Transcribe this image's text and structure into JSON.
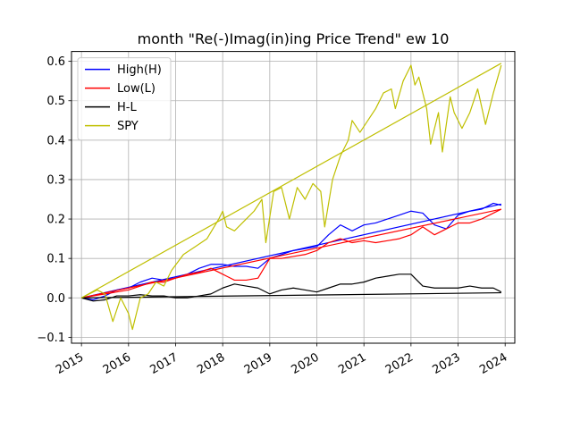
{
  "chart_data": {
    "type": "line",
    "title": "month \"Re(-)Imag(in)ing Price Trend\" ew 10",
    "xlabel": "",
    "ylabel": "",
    "x_ticks": [
      "2015",
      "2016",
      "2017",
      "2018",
      "2019",
      "2020",
      "2021",
      "2022",
      "2023",
      "2024"
    ],
    "y_ticks": [
      "−0.1",
      "0.0",
      "0.1",
      "0.2",
      "0.3",
      "0.4",
      "0.5",
      "0.6"
    ],
    "xlim": [
      "2014-10-15",
      "2024-03-15"
    ],
    "ylim": [
      -0.115,
      0.625
    ],
    "grid": true,
    "legend_position": "upper-left",
    "series": [
      {
        "name": "High(H)",
        "color": "#0000ff",
        "points": [
          [
            "2015-01",
            0.0
          ],
          [
            "2015-04",
            -0.005
          ],
          [
            "2015-07",
            0.005
          ],
          [
            "2015-10",
            0.02
          ],
          [
            "2016-01",
            0.025
          ],
          [
            "2016-04",
            0.04
          ],
          [
            "2016-07",
            0.05
          ],
          [
            "2016-10",
            0.045
          ],
          [
            "2017-01",
            0.05
          ],
          [
            "2017-04",
            0.06
          ],
          [
            "2017-07",
            0.075
          ],
          [
            "2017-10",
            0.085
          ],
          [
            "2018-01",
            0.085
          ],
          [
            "2018-04",
            0.08
          ],
          [
            "2018-07",
            0.08
          ],
          [
            "2018-10",
            0.075
          ],
          [
            "2019-01",
            0.1
          ],
          [
            "2019-04",
            0.11
          ],
          [
            "2019-07",
            0.12
          ],
          [
            "2019-10",
            0.125
          ],
          [
            "2020-01",
            0.13
          ],
          [
            "2020-04",
            0.16
          ],
          [
            "2020-07",
            0.185
          ],
          [
            "2020-10",
            0.17
          ],
          [
            "2021-01",
            0.185
          ],
          [
            "2021-04",
            0.19
          ],
          [
            "2021-07",
            0.2
          ],
          [
            "2021-10",
            0.21
          ],
          [
            "2022-01",
            0.22
          ],
          [
            "2022-04",
            0.215
          ],
          [
            "2022-07",
            0.185
          ],
          [
            "2022-10",
            0.175
          ],
          [
            "2023-01",
            0.21
          ],
          [
            "2023-04",
            0.22
          ],
          [
            "2023-07",
            0.225
          ],
          [
            "2023-10",
            0.24
          ],
          [
            "2023-12",
            0.235
          ]
        ],
        "trend": [
          [
            "2015-01",
            0.0
          ],
          [
            "2023-12",
            0.238
          ]
        ]
      },
      {
        "name": "Low(L)",
        "color": "#ff0000",
        "points": [
          [
            "2015-01",
            0.0
          ],
          [
            "2015-04",
            0.005
          ],
          [
            "2015-07",
            0.01
          ],
          [
            "2015-10",
            0.015
          ],
          [
            "2016-01",
            0.02
          ],
          [
            "2016-04",
            0.03
          ],
          [
            "2016-07",
            0.04
          ],
          [
            "2016-10",
            0.04
          ],
          [
            "2017-01",
            0.05
          ],
          [
            "2017-04",
            0.06
          ],
          [
            "2017-07",
            0.065
          ],
          [
            "2017-10",
            0.075
          ],
          [
            "2018-01",
            0.06
          ],
          [
            "2018-04",
            0.045
          ],
          [
            "2018-07",
            0.045
          ],
          [
            "2018-10",
            0.05
          ],
          [
            "2019-01",
            0.1
          ],
          [
            "2019-04",
            0.1
          ],
          [
            "2019-07",
            0.105
          ],
          [
            "2019-10",
            0.11
          ],
          [
            "2020-01",
            0.12
          ],
          [
            "2020-04",
            0.14
          ],
          [
            "2020-07",
            0.15
          ],
          [
            "2020-10",
            0.14
          ],
          [
            "2021-01",
            0.145
          ],
          [
            "2021-04",
            0.14
          ],
          [
            "2021-07",
            0.145
          ],
          [
            "2021-10",
            0.15
          ],
          [
            "2022-01",
            0.16
          ],
          [
            "2022-04",
            0.18
          ],
          [
            "2022-07",
            0.16
          ],
          [
            "2022-10",
            0.175
          ],
          [
            "2023-01",
            0.19
          ],
          [
            "2023-04",
            0.19
          ],
          [
            "2023-07",
            0.2
          ],
          [
            "2023-10",
            0.215
          ],
          [
            "2023-12",
            0.225
          ]
        ],
        "trend": [
          [
            "2015-01",
            0.0
          ],
          [
            "2023-12",
            0.225
          ]
        ]
      },
      {
        "name": "H-L",
        "color": "#000000",
        "points": [
          [
            "2015-01",
            0.0
          ],
          [
            "2015-04",
            -0.008
          ],
          [
            "2015-07",
            -0.005
          ],
          [
            "2015-10",
            0.005
          ],
          [
            "2016-01",
            0.005
          ],
          [
            "2016-04",
            0.008
          ],
          [
            "2016-07",
            0.005
          ],
          [
            "2016-10",
            0.005
          ],
          [
            "2017-01",
            0.0
          ],
          [
            "2017-04",
            0.0
          ],
          [
            "2017-07",
            0.005
          ],
          [
            "2017-10",
            0.01
          ],
          [
            "2018-01",
            0.025
          ],
          [
            "2018-04",
            0.035
          ],
          [
            "2018-07",
            0.03
          ],
          [
            "2018-10",
            0.025
          ],
          [
            "2019-01",
            0.01
          ],
          [
            "2019-04",
            0.02
          ],
          [
            "2019-07",
            0.025
          ],
          [
            "2019-10",
            0.02
          ],
          [
            "2020-01",
            0.015
          ],
          [
            "2020-04",
            0.025
          ],
          [
            "2020-07",
            0.035
          ],
          [
            "2020-10",
            0.035
          ],
          [
            "2021-01",
            0.04
          ],
          [
            "2021-04",
            0.05
          ],
          [
            "2021-07",
            0.055
          ],
          [
            "2021-10",
            0.06
          ],
          [
            "2022-01",
            0.06
          ],
          [
            "2022-04",
            0.03
          ],
          [
            "2022-07",
            0.025
          ],
          [
            "2022-10",
            0.025
          ],
          [
            "2023-01",
            0.025
          ],
          [
            "2023-04",
            0.03
          ],
          [
            "2023-07",
            0.025
          ],
          [
            "2023-10",
            0.025
          ],
          [
            "2023-12",
            0.015
          ]
        ],
        "trend": [
          [
            "2015-01",
            0.0
          ],
          [
            "2023-12",
            0.013
          ]
        ]
      },
      {
        "name": "SPY",
        "color": "#bfbf00",
        "points": [
          [
            "2015-01",
            0.0
          ],
          [
            "2015-03",
            0.01
          ],
          [
            "2015-05",
            0.02
          ],
          [
            "2015-07",
            0.01
          ],
          [
            "2015-09",
            -0.06
          ],
          [
            "2015-11",
            0.0
          ],
          [
            "2016-01",
            -0.04
          ],
          [
            "2016-02",
            -0.08
          ],
          [
            "2016-04",
            0.0
          ],
          [
            "2016-06",
            0.01
          ],
          [
            "2016-08",
            0.04
          ],
          [
            "2016-10",
            0.03
          ],
          [
            "2016-12",
            0.07
          ],
          [
            "2017-03",
            0.11
          ],
          [
            "2017-06",
            0.13
          ],
          [
            "2017-09",
            0.15
          ],
          [
            "2017-12",
            0.2
          ],
          [
            "2018-01",
            0.22
          ],
          [
            "2018-02",
            0.18
          ],
          [
            "2018-04",
            0.17
          ],
          [
            "2018-07",
            0.2
          ],
          [
            "2018-09",
            0.22
          ],
          [
            "2018-11",
            0.25
          ],
          [
            "2018-12",
            0.14
          ],
          [
            "2019-02",
            0.27
          ],
          [
            "2019-04",
            0.28
          ],
          [
            "2019-06",
            0.2
          ],
          [
            "2019-08",
            0.28
          ],
          [
            "2019-10",
            0.25
          ],
          [
            "2019-12",
            0.29
          ],
          [
            "2020-02",
            0.27
          ],
          [
            "2020-03",
            0.18
          ],
          [
            "2020-05",
            0.3
          ],
          [
            "2020-07",
            0.36
          ],
          [
            "2020-09",
            0.4
          ],
          [
            "2020-10",
            0.45
          ],
          [
            "2020-12",
            0.42
          ],
          [
            "2021-02",
            0.45
          ],
          [
            "2021-04",
            0.48
          ],
          [
            "2021-06",
            0.52
          ],
          [
            "2021-08",
            0.53
          ],
          [
            "2021-09",
            0.48
          ],
          [
            "2021-11",
            0.55
          ],
          [
            "2022-01",
            0.59
          ],
          [
            "2022-02",
            0.54
          ],
          [
            "2022-03",
            0.56
          ],
          [
            "2022-05",
            0.48
          ],
          [
            "2022-06",
            0.39
          ],
          [
            "2022-08",
            0.47
          ],
          [
            "2022-09",
            0.37
          ],
          [
            "2022-11",
            0.51
          ],
          [
            "2022-12",
            0.47
          ],
          [
            "2023-02",
            0.43
          ],
          [
            "2023-04",
            0.47
          ],
          [
            "2023-06",
            0.53
          ],
          [
            "2023-08",
            0.44
          ],
          [
            "2023-10",
            0.52
          ],
          [
            "2023-12",
            0.59
          ]
        ],
        "trend": [
          [
            "2015-01",
            0.0
          ],
          [
            "2023-12",
            0.595
          ]
        ]
      }
    ]
  }
}
